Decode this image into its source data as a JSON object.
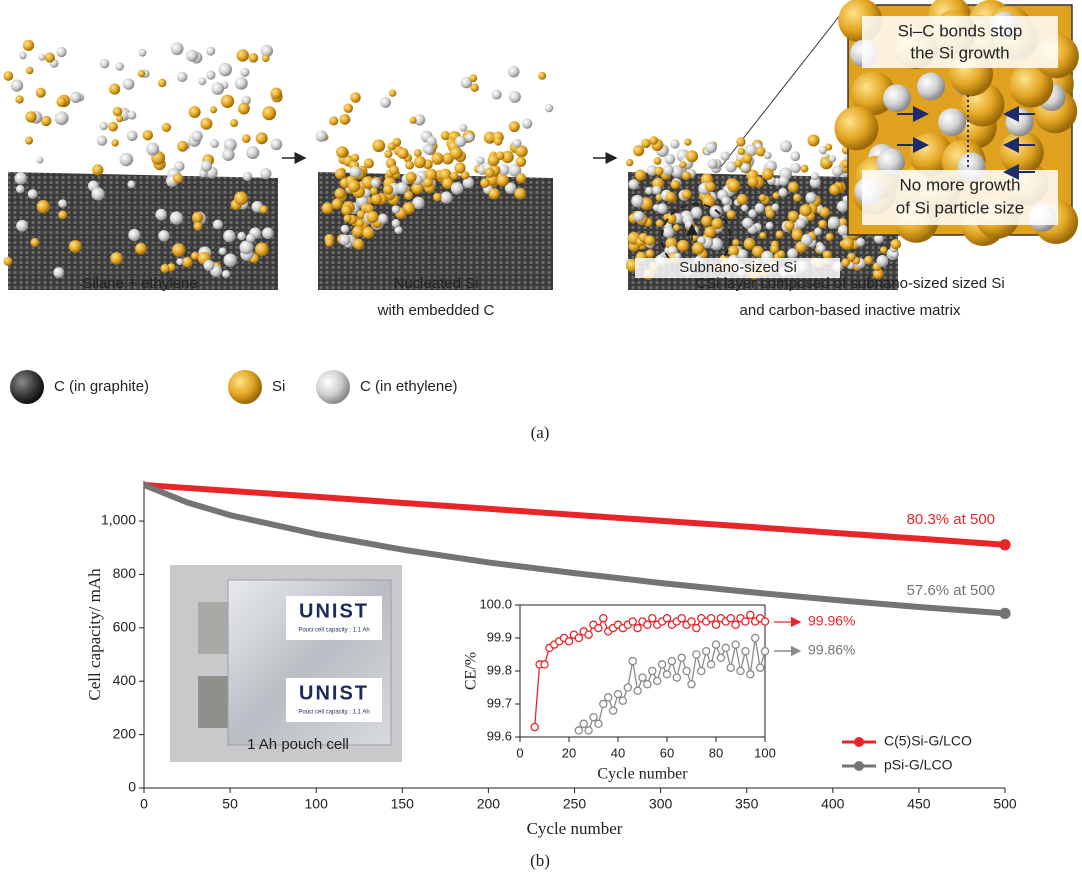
{
  "panel_a": {
    "label": "(a)",
    "zoom_top": [
      "Si–C bonds stop",
      "the Si growth"
    ],
    "zoom_bottom": [
      "No more growth",
      "of Si particle size"
    ],
    "subnano": "Subnano-sized Si",
    "captions": [
      [
        "Silane + ethylene"
      ],
      [
        "Nucleated Si",
        "with embedded C"
      ],
      [
        "CSi layer composed of subnano-sized sized Si",
        "and carbon-based inactive matrix"
      ]
    ],
    "legend": [
      "C (in graphite)",
      "Si",
      "C (in ethylene)"
    ]
  },
  "panel_b": {
    "label": "(b)",
    "photo": {
      "brand": "UNIST",
      "capacity": "Pouci cell capacity : 1.1 Ah",
      "caption": "1 Ah pouch cell"
    }
  },
  "chart_data": [
    {
      "type": "line",
      "xlabel": "Cycle number",
      "ylabel": "Cell capacity/ mAh",
      "x": [
        0,
        25,
        50,
        100,
        150,
        200,
        250,
        300,
        350,
        400,
        450,
        500
      ],
      "xlim": [
        0,
        500
      ],
      "xticks": [
        0,
        50,
        100,
        150,
        200,
        250,
        300,
        350,
        400,
        450,
        500
      ],
      "ylim": [
        0,
        1150
      ],
      "yticks": [
        0,
        200,
        400,
        600,
        800,
        {
          "value": 1000,
          "label": "1,000"
        }
      ],
      "grid": false,
      "legend": "lower right",
      "series": [
        {
          "name": "C(5)Si-G/LCO",
          "color": "#e8262a",
          "values": [
            1135,
            1124,
            1113,
            1091,
            1068,
            1046,
            1023,
            1001,
            979,
            956,
            934,
            911
          ]
        },
        {
          "name": "pSi-G/LCO",
          "color": "#747474",
          "values": [
            1135,
            1070,
            1022,
            951,
            893,
            845,
            805,
            768,
            735,
            705,
            678,
            654
          ]
        }
      ],
      "annotations": [
        {
          "text": "80.3% at 500",
          "color": "#e8262a"
        },
        {
          "text": "57.6% at 500",
          "color": "#747474"
        }
      ]
    },
    {
      "type": "line",
      "xlabel": "Cycle number",
      "ylabel": "CE/%",
      "x": [
        6,
        8,
        10,
        12,
        14,
        16,
        18,
        20,
        22,
        24,
        26,
        28,
        30,
        32,
        34,
        36,
        38,
        40,
        42,
        44,
        46,
        48,
        50,
        52,
        54,
        56,
        58,
        60,
        62,
        64,
        66,
        68,
        70,
        72,
        74,
        76,
        78,
        80,
        82,
        84,
        86,
        88,
        90,
        92,
        94,
        96,
        98,
        100
      ],
      "xlim": [
        0,
        100
      ],
      "xticks": [
        0,
        20,
        40,
        60,
        80,
        100
      ],
      "ylim": [
        99.6,
        100
      ],
      "yticks": [
        99.6,
        99.7,
        99.8,
        99.9,
        {
          "value": 100,
          "label": "100.0"
        }
      ],
      "grid": false,
      "series": [
        {
          "name": "C(5)Si-G/LCO",
          "color": "#e8262a",
          "values": [
            99.63,
            99.82,
            99.82,
            99.87,
            99.88,
            99.89,
            99.9,
            99.89,
            99.91,
            99.9,
            99.92,
            99.91,
            99.94,
            99.93,
            99.96,
            99.92,
            99.93,
            99.94,
            99.93,
            99.94,
            99.95,
            99.93,
            99.95,
            99.94,
            99.96,
            99.94,
            99.95,
            99.96,
            99.94,
            99.95,
            99.96,
            99.94,
            99.95,
            99.93,
            99.96,
            99.95,
            99.96,
            99.94,
            99.96,
            99.95,
            99.96,
            99.94,
            99.96,
            99.95,
            99.97,
            99.95,
            99.96,
            99.95
          ]
        },
        {
          "name": "pSi-G/LCO",
          "color": "#8a8a8a",
          "values": [
            null,
            null,
            null,
            null,
            null,
            null,
            null,
            null,
            null,
            99.62,
            99.64,
            99.62,
            99.66,
            99.64,
            99.7,
            99.72,
            99.68,
            99.73,
            99.71,
            99.75,
            99.83,
            99.74,
            99.78,
            99.76,
            99.8,
            99.77,
            99.82,
            99.79,
            99.83,
            99.78,
            99.84,
            99.8,
            99.76,
            99.85,
            99.8,
            99.86,
            99.82,
            99.88,
            99.84,
            99.87,
            99.81,
            99.88,
            99.8,
            99.86,
            99.79,
            99.9,
            99.81,
            99.86
          ]
        }
      ],
      "annotations": [
        {
          "text": "99.96%",
          "color": "#e8262a"
        },
        {
          "text": "99.86%",
          "color": "#747474"
        }
      ]
    }
  ]
}
